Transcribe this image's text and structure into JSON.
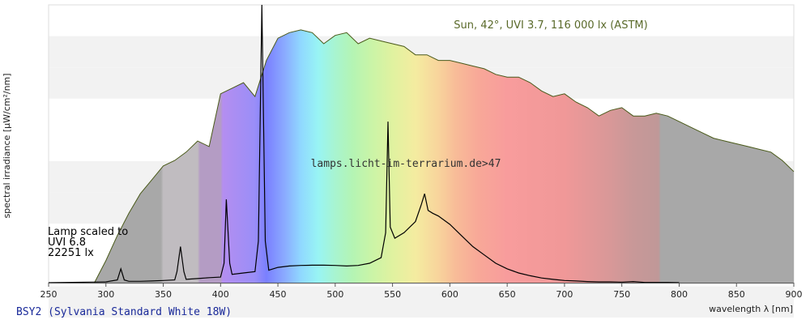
{
  "chart_data": {
    "type": "area",
    "bulb_label": "BSY2 (Sylvania Standard White 18W)",
    "xlabel": "wavelength λ [nm]",
    "ylabel": "spectral irradiance [µW/cm²/nm]",
    "xlim": [
      250,
      900
    ],
    "x_ticks": [
      250,
      300,
      350,
      400,
      450,
      500,
      550,
      600,
      650,
      700,
      750,
      800,
      850,
      900
    ],
    "grid": "horizontal bands",
    "sun_label": "Sun, 42°, UVI 3.7, 116 000 lx (ASTM)",
    "watermark": "lamps.licht-im-terrarium.de>47",
    "lamp_caption": [
      "Lamp scaled to",
      "UVI 6.8",
      "22251 lx"
    ],
    "colors": {
      "sun_fill": "#a8a8a8",
      "sun_line": "#4a5a1a",
      "lamp_line": "#000000"
    },
    "series": [
      {
        "name": "Sun",
        "x": [
          290,
          300,
          310,
          320,
          330,
          340,
          350,
          360,
          370,
          380,
          390,
          400,
          410,
          420,
          430,
          440,
          450,
          460,
          470,
          480,
          490,
          500,
          510,
          520,
          530,
          540,
          550,
          560,
          570,
          580,
          590,
          600,
          610,
          620,
          630,
          640,
          650,
          660,
          670,
          680,
          690,
          700,
          710,
          720,
          730,
          740,
          750,
          760,
          770,
          780,
          790,
          800,
          810,
          820,
          830,
          840,
          850,
          860,
          870,
          880,
          890,
          900
        ],
        "y": [
          0,
          0.08,
          0.17,
          0.25,
          0.32,
          0.37,
          0.42,
          0.44,
          0.47,
          0.51,
          0.49,
          0.68,
          0.7,
          0.72,
          0.67,
          0.8,
          0.88,
          0.9,
          0.91,
          0.9,
          0.86,
          0.89,
          0.9,
          0.86,
          0.88,
          0.87,
          0.86,
          0.85,
          0.82,
          0.82,
          0.8,
          0.8,
          0.79,
          0.78,
          0.77,
          0.75,
          0.74,
          0.74,
          0.72,
          0.69,
          0.67,
          0.68,
          0.65,
          0.63,
          0.6,
          0.62,
          0.63,
          0.6,
          0.6,
          0.61,
          0.6,
          0.58,
          0.56,
          0.54,
          0.52,
          0.51,
          0.5,
          0.49,
          0.48,
          0.47,
          0.44,
          0.4
        ]
      },
      {
        "name": "Lamp",
        "x": [
          250,
          300,
          310,
          313,
          316,
          320,
          330,
          340,
          350,
          360,
          362,
          365,
          368,
          370,
          380,
          390,
          400,
          403,
          405,
          408,
          410,
          420,
          430,
          433,
          436,
          439,
          442,
          450,
          460,
          470,
          480,
          490,
          500,
          510,
          520,
          530,
          540,
          544,
          546,
          548,
          552,
          560,
          570,
          575,
          578,
          581,
          585,
          590,
          600,
          610,
          620,
          630,
          640,
          650,
          660,
          670,
          680,
          690,
          700,
          710,
          720,
          730,
          740,
          750,
          760,
          770,
          780,
          790,
          800
        ],
        "y": [
          0,
          0.003,
          0.01,
          0.05,
          0.01,
          0.005,
          0.005,
          0.006,
          0.008,
          0.01,
          0.04,
          0.13,
          0.04,
          0.012,
          0.015,
          0.018,
          0.02,
          0.07,
          0.3,
          0.07,
          0.03,
          0.035,
          0.04,
          0.15,
          1.0,
          0.15,
          0.045,
          0.055,
          0.06,
          0.062,
          0.063,
          0.063,
          0.062,
          0.06,
          0.062,
          0.07,
          0.09,
          0.18,
          0.58,
          0.2,
          0.16,
          0.18,
          0.22,
          0.28,
          0.32,
          0.26,
          0.25,
          0.24,
          0.21,
          0.17,
          0.13,
          0.1,
          0.07,
          0.05,
          0.035,
          0.025,
          0.017,
          0.012,
          0.008,
          0.006,
          0.004,
          0.003,
          0.003,
          0.002,
          0.004,
          0.001,
          0.001,
          0.001,
          0
        ]
      }
    ]
  }
}
